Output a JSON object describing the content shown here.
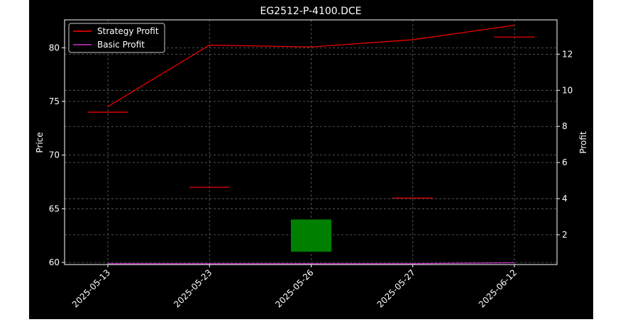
{
  "chart_data": {
    "type": "candlestick",
    "title": "EG2512-P-4100.DCE",
    "categories": [
      "2025-05-13",
      "2025-05-23",
      "2025-05-26",
      "2025-05-27",
      "2025-06-12"
    ],
    "ylabel": "Price",
    "ylabel_right": "Profit",
    "ylim": [
      59.8,
      82.6
    ],
    "ylim_right": [
      0.35,
      13.9
    ],
    "yticks": [
      60,
      65,
      70,
      75,
      80
    ],
    "yticks_right": [
      2,
      4,
      6,
      8,
      10,
      12
    ],
    "grid": true,
    "legend_position": "top-left",
    "candles": [
      {
        "date": "2025-05-13",
        "open": 74.0,
        "high": 74.0,
        "low": 74.0,
        "close": 74.0,
        "color": "#ff0000"
      },
      {
        "date": "2025-05-23",
        "open": 67.0,
        "high": 67.0,
        "low": 67.0,
        "close": 67.0,
        "color": "#ff0000"
      },
      {
        "date": "2025-05-26",
        "open": 64.0,
        "high": 64.0,
        "low": 61.0,
        "close": 61.0,
        "color": "#008000"
      },
      {
        "date": "2025-05-27",
        "open": 66.0,
        "high": 66.0,
        "low": 66.0,
        "close": 66.0,
        "color": "#ff0000"
      },
      {
        "date": "2025-06-12",
        "open": 81.0,
        "high": 81.0,
        "low": 81.0,
        "close": 81.0,
        "color": "#ff0000"
      }
    ],
    "series": [
      {
        "name": "Strategy Profit",
        "axis": "right",
        "color": "#ff0000",
        "values": [
          9.1,
          12.5,
          12.4,
          12.8,
          13.6
        ]
      },
      {
        "name": "Basic Profit",
        "axis": "right",
        "color": "#cc33cc",
        "values": [
          0.4,
          0.4,
          0.4,
          0.4,
          0.45
        ]
      }
    ]
  },
  "colors": {
    "background": "#000000",
    "axes": "#ffffff",
    "grid": "#666666",
    "text": "#ffffff"
  }
}
